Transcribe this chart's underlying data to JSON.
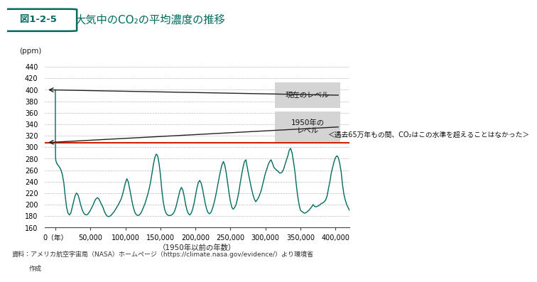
{
  "title": "大気中のCO₂の平均濃度の推移",
  "title_prefix": "図1-2-5",
  "xlabel": "（1950年以前の年数）",
  "ylabel": "(ppm)",
  "ylim": [
    160,
    450
  ],
  "xlim_left": 420000,
  "xlim_right": -15000,
  "xticks": [
    400000,
    350000,
    300000,
    250000,
    200000,
    150000,
    100000,
    50000,
    0
  ],
  "xtick_labels": [
    "400,000",
    "350,000",
    "300,000",
    "250,000",
    "200,000",
    "150,000",
    "100,000",
    "50,000",
    "0（年）"
  ],
  "yticks": [
    160,
    180,
    200,
    220,
    240,
    260,
    280,
    300,
    320,
    340,
    360,
    380,
    400,
    420,
    440
  ],
  "ref_line_y": 308,
  "ref_line_color": "#cc2200",
  "annotation_1950_text": "1950年の\nレベル",
  "annotation_current_text": "現在のレベル",
  "annotation_hist_text": "＜遇去65万年もの間、CO₂はこの水準を超えることはなかった＞",
  "source_line1": "資料：アメリカ航空宇宙局（NASA）ホームページ（https://climate.nasa.gov/evidence/）より環境省",
  "source_line2": "作成",
  "bg_color": "#ffffff",
  "grid_color": "#bbbbbb",
  "teal_color": "#006b5e",
  "title_color": "#006b5e",
  "box_color": "#d4d4d4"
}
